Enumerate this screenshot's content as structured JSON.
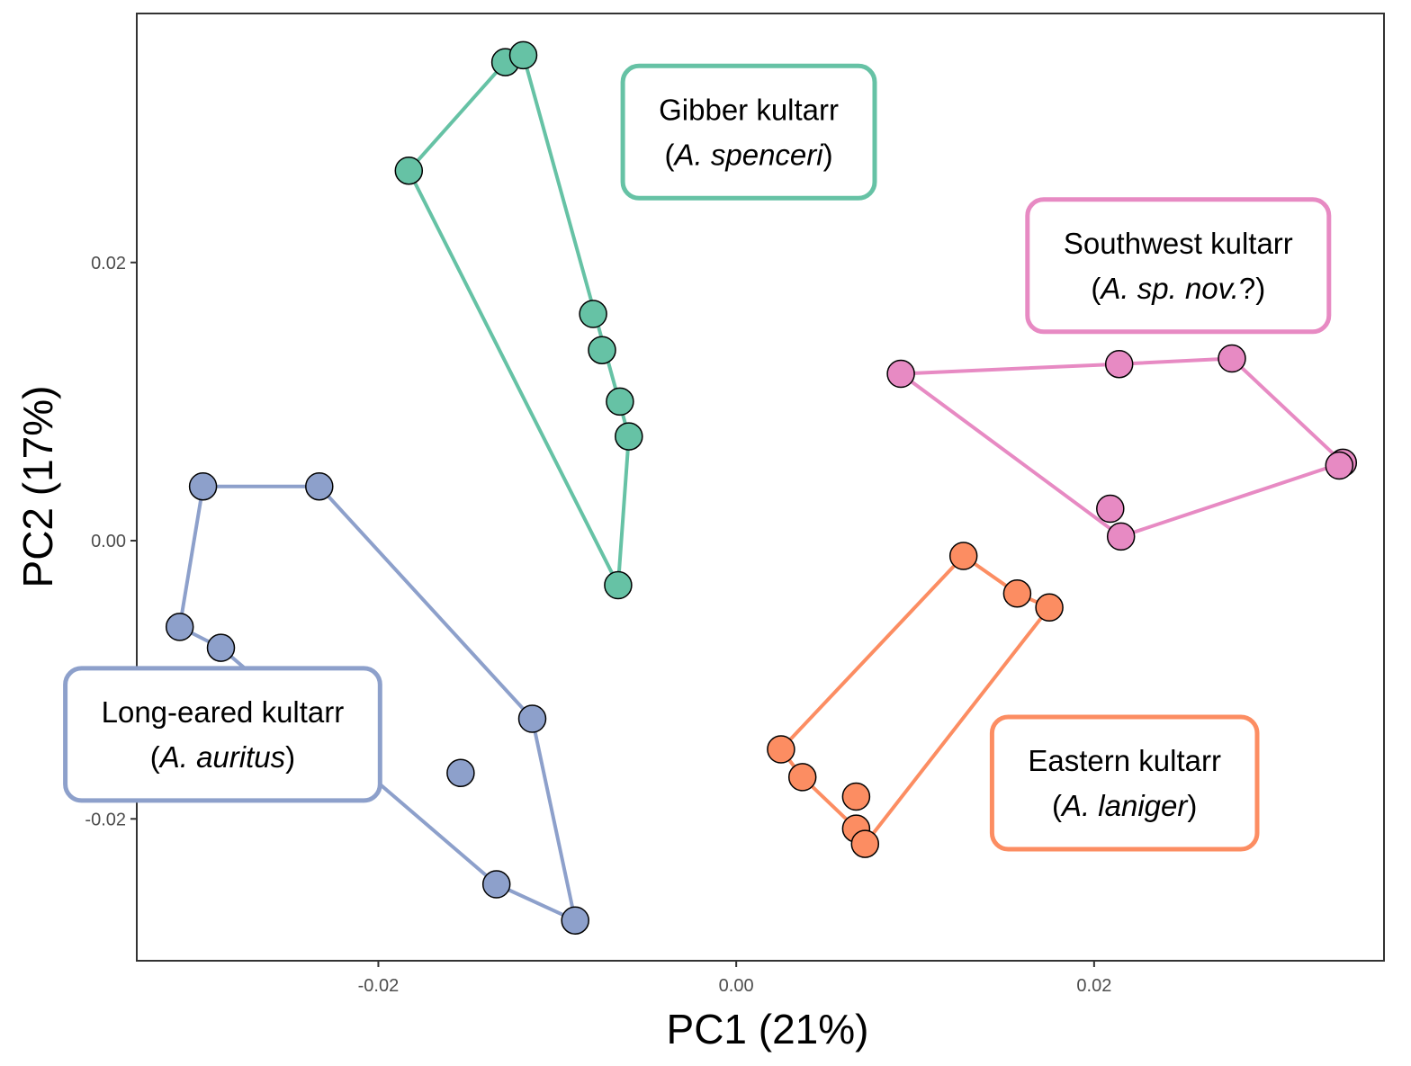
{
  "chart_data": {
    "type": "scatter",
    "title": "",
    "xlabel": "PC1 (21%)",
    "ylabel": "PC2 (17%)",
    "xlim": [
      -0.0335,
      0.0362
    ],
    "ylim": [
      -0.0302,
      0.0379
    ],
    "x_ticks": [
      {
        "value": -0.02,
        "label": "-0.02"
      },
      {
        "value": 0.0,
        "label": "0.00"
      },
      {
        "value": 0.02,
        "label": "0.02"
      }
    ],
    "y_ticks": [
      {
        "value": 0.02,
        "label": "0.02"
      },
      {
        "value": 0.0,
        "label": "0.00"
      },
      {
        "value": -0.02,
        "label": "-0.02"
      }
    ],
    "grid": false,
    "legend": "none",
    "series": [
      {
        "color": "#66c2a5",
        "label_lines": [
          "Gibber kultarr",
          "(",
          "A. spenceri",
          ")"
        ],
        "label_name": "Gibber kultarr",
        "label_open": "(",
        "label_species": "A. spenceri",
        "label_close": ")",
        "label_anchor": {
          "x": 0.0007,
          "y": 0.0296
        },
        "points": [
          {
            "x": -0.0129,
            "y": 0.0344
          },
          {
            "x": -0.0119,
            "y": 0.0349
          },
          {
            "x": -0.0183,
            "y": 0.0266
          },
          {
            "x": -0.008,
            "y": 0.0163
          },
          {
            "x": -0.0075,
            "y": 0.0137
          },
          {
            "x": -0.0065,
            "y": 0.01
          },
          {
            "x": -0.006,
            "y": 0.0075
          },
          {
            "x": -0.0066,
            "y": -0.0032
          }
        ],
        "hull": [
          {
            "x": -0.0129,
            "y": 0.0344
          },
          {
            "x": -0.0119,
            "y": 0.0349
          },
          {
            "x": -0.006,
            "y": 0.0075
          },
          {
            "x": -0.0066,
            "y": -0.0032
          },
          {
            "x": -0.0183,
            "y": 0.0266
          }
        ]
      },
      {
        "color": "#e78ac3",
        "label_name": "Southwest kultarr",
        "label_open": "(",
        "label_species": "A. sp. nov.",
        "label_close": "?)",
        "label_anchor": {
          "x": 0.0247,
          "y": 0.02
        },
        "points": [
          {
            "x": 0.0092,
            "y": 0.012
          },
          {
            "x": 0.0214,
            "y": 0.0127
          },
          {
            "x": 0.0277,
            "y": 0.0131
          },
          {
            "x": 0.0339,
            "y": 0.0056
          },
          {
            "x": 0.0337,
            "y": 0.0054
          },
          {
            "x": 0.0209,
            "y": 0.0023
          },
          {
            "x": 0.0215,
            "y": 0.0003
          }
        ],
        "hull": [
          {
            "x": 0.0092,
            "y": 0.012
          },
          {
            "x": 0.0214,
            "y": 0.0127
          },
          {
            "x": 0.0277,
            "y": 0.0131
          },
          {
            "x": 0.0339,
            "y": 0.0056
          },
          {
            "x": 0.0215,
            "y": 0.0003
          }
        ]
      },
      {
        "color": "#fc8d62",
        "label_name": "Eastern kultarr",
        "label_open": "(",
        "label_species": "A. laniger",
        "label_close": ")",
        "label_anchor": {
          "x": 0.0217,
          "y": -0.0172
        },
        "points": [
          {
            "x": 0.0127,
            "y": -0.0011
          },
          {
            "x": 0.0157,
            "y": -0.0038
          },
          {
            "x": 0.0175,
            "y": -0.0048
          },
          {
            "x": 0.0025,
            "y": -0.015
          },
          {
            "x": 0.0037,
            "y": -0.017
          },
          {
            "x": 0.0067,
            "y": -0.0184
          },
          {
            "x": 0.0067,
            "y": -0.0207
          },
          {
            "x": 0.0072,
            "y": -0.0218
          }
        ],
        "hull": [
          {
            "x": 0.0127,
            "y": -0.0011
          },
          {
            "x": 0.0157,
            "y": -0.0038
          },
          {
            "x": 0.0175,
            "y": -0.0048
          },
          {
            "x": 0.0072,
            "y": -0.0218
          },
          {
            "x": 0.0067,
            "y": -0.0207
          },
          {
            "x": 0.0037,
            "y": -0.017
          },
          {
            "x": 0.0025,
            "y": -0.015
          }
        ]
      },
      {
        "color": "#8da0cb",
        "label_name": "Long-eared kultarr",
        "label_open": "(",
        "label_species": "A. auritus",
        "label_close": ")",
        "label_anchor": {
          "x": -0.0287,
          "y": -0.0137
        },
        "points": [
          {
            "x": -0.0298,
            "y": 0.0039
          },
          {
            "x": -0.0233,
            "y": 0.0039
          },
          {
            "x": -0.0311,
            "y": -0.0062
          },
          {
            "x": -0.0288,
            "y": -0.0077
          },
          {
            "x": -0.0114,
            "y": -0.0128
          },
          {
            "x": -0.0154,
            "y": -0.0167
          },
          {
            "x": -0.0134,
            "y": -0.0247
          },
          {
            "x": -0.009,
            "y": -0.0273
          }
        ],
        "hull": [
          {
            "x": -0.0298,
            "y": 0.0039
          },
          {
            "x": -0.0233,
            "y": 0.0039
          },
          {
            "x": -0.0114,
            "y": -0.0128
          },
          {
            "x": -0.009,
            "y": -0.0273
          },
          {
            "x": -0.0134,
            "y": -0.0247
          },
          {
            "x": -0.0288,
            "y": -0.0077
          },
          {
            "x": -0.0311,
            "y": -0.0062
          }
        ]
      }
    ]
  }
}
